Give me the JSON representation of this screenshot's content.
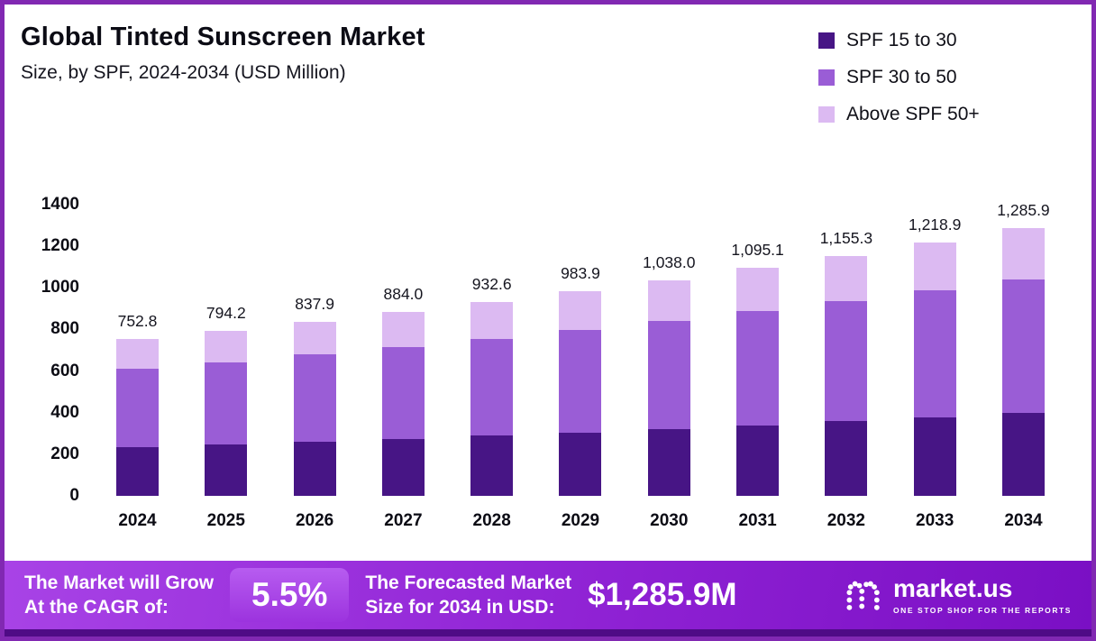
{
  "header": {
    "title": "Global Tinted Sunscreen Market",
    "subtitle": "Size, by SPF, 2024-2034 (USD Million)"
  },
  "legend": {
    "items": [
      {
        "label": "SPF 15 to 30",
        "color": "#471585"
      },
      {
        "label": "SPF 30 to 50",
        "color": "#9a5dd6"
      },
      {
        "label": "Above SPF 50+",
        "color": "#dcbaf2"
      }
    ]
  },
  "chart_data": {
    "type": "bar",
    "stacked": true,
    "title": "Global Tinted Sunscreen Market Size, by SPF, 2024-2034 (USD Million)",
    "xlabel": "",
    "ylabel": "",
    "ylim": [
      0,
      1400
    ],
    "yticks": [
      0,
      200,
      400,
      600,
      800,
      1000,
      1200,
      1400
    ],
    "grid": false,
    "legend_position": "top-right",
    "categories": [
      "2024",
      "2025",
      "2026",
      "2027",
      "2028",
      "2029",
      "2030",
      "2031",
      "2032",
      "2033",
      "2034"
    ],
    "totals": [
      752.8,
      794.2,
      837.9,
      884.0,
      932.6,
      983.9,
      1038.0,
      1095.1,
      1155.3,
      1218.9,
      1285.9
    ],
    "total_labels": [
      "752.8",
      "794.2",
      "837.9",
      "884.0",
      "932.6",
      "983.9",
      "1,038.0",
      "1,095.1",
      "1,155.3",
      "1,218.9",
      "1,285.9"
    ],
    "series": [
      {
        "name": "SPF 15 to 30",
        "color": "#471585",
        "values": [
          233.4,
          246.2,
          259.7,
          274.0,
          289.1,
          305.0,
          321.8,
          339.5,
          358.1,
          377.9,
          398.6
        ]
      },
      {
        "name": "SPF 30 to 50",
        "color": "#9a5dd6",
        "values": [
          376.4,
          397.1,
          419.0,
          442.0,
          466.3,
          492.0,
          519.0,
          547.6,
          577.7,
          609.5,
          643.0
        ]
      },
      {
        "name": "Above SPF 50+",
        "color": "#dcbaf2",
        "values": [
          143.0,
          150.9,
          159.2,
          168.0,
          177.2,
          186.9,
          197.2,
          208.0,
          219.5,
          231.5,
          244.3
        ]
      }
    ]
  },
  "footer": {
    "cagr_label_line1": "The Market will Grow",
    "cagr_label_line2": "At the CAGR of:",
    "cagr_value": "5.5%",
    "forecast_label_line1": "The Forecasted Market",
    "forecast_label_line2": "Size for 2034 in USD:",
    "forecast_value": "$1,285.9M",
    "logo_name": "market.us",
    "logo_tagline": "ONE STOP SHOP FOR THE REPORTS"
  },
  "colors": {
    "border": "#8128b2",
    "footer_gradient_start": "#a843e6",
    "footer_gradient_mid": "#8f22d4",
    "footer_gradient_end": "#7a0fc4",
    "footer_strip": "#4f0b86"
  }
}
